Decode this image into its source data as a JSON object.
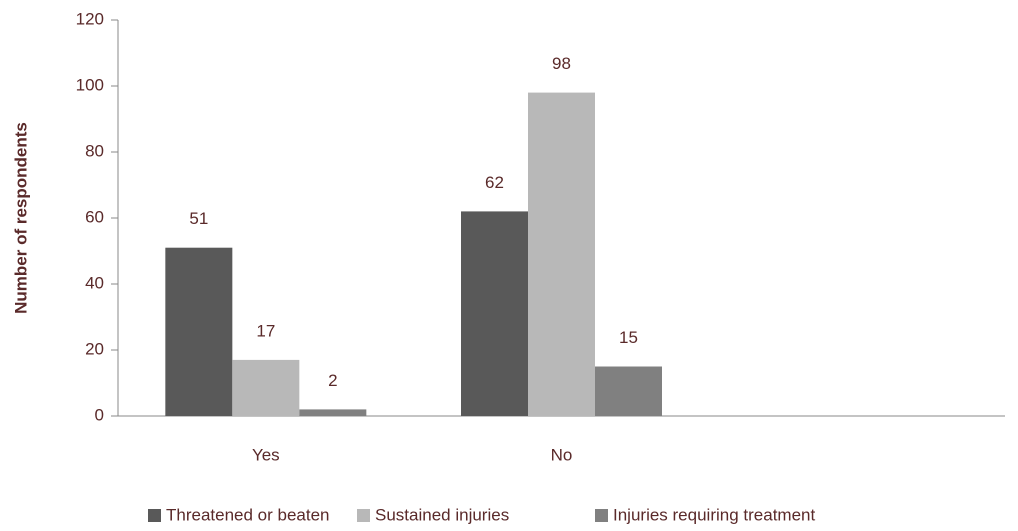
{
  "chart_data": {
    "type": "bar",
    "y_label": "Number of respondents",
    "categories": [
      "Yes",
      "No",
      null
    ],
    "series": [
      {
        "name": "Threatened or beaten",
        "color": "#595959",
        "values": [
          51,
          62,
          null
        ]
      },
      {
        "name": "Sustained injuries",
        "color": "#b8b8b8",
        "values": [
          17,
          98,
          null
        ]
      },
      {
        "name": "Injuries requiring treatment",
        "color": "#808080",
        "values": [
          2,
          15,
          null
        ]
      }
    ],
    "ylim": [
      0,
      120
    ],
    "yticks": [
      0,
      20,
      40,
      60,
      80,
      100,
      120
    ],
    "grid": false,
    "legend": "bottom"
  }
}
